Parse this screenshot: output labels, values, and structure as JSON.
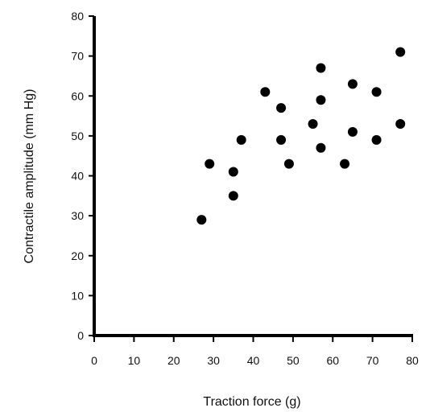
{
  "chart_data": {
    "type": "scatter",
    "title": "",
    "xlabel": "Traction force (g)",
    "ylabel": "Contractile amplitude (mm Hg)",
    "xlim": [
      0,
      80
    ],
    "ylim": [
      0,
      80
    ],
    "x_ticks": [
      0,
      10,
      20,
      30,
      40,
      50,
      60,
      70,
      80
    ],
    "y_ticks": [
      0,
      10,
      20,
      30,
      40,
      50,
      60,
      70,
      80
    ],
    "grid": false,
    "series": [
      {
        "points": [
          {
            "x": 27,
            "y": 29
          },
          {
            "x": 29,
            "y": 43
          },
          {
            "x": 35,
            "y": 41
          },
          {
            "x": 35,
            "y": 35
          },
          {
            "x": 37,
            "y": 49
          },
          {
            "x": 43,
            "y": 61
          },
          {
            "x": 47,
            "y": 57
          },
          {
            "x": 47,
            "y": 49
          },
          {
            "x": 49,
            "y": 43
          },
          {
            "x": 55,
            "y": 53
          },
          {
            "x": 57,
            "y": 67
          },
          {
            "x": 57,
            "y": 59
          },
          {
            "x": 57,
            "y": 47
          },
          {
            "x": 63,
            "y": 43
          },
          {
            "x": 65,
            "y": 63
          },
          {
            "x": 65,
            "y": 51
          },
          {
            "x": 71,
            "y": 61
          },
          {
            "x": 71,
            "y": 49
          },
          {
            "x": 77,
            "y": 71
          },
          {
            "x": 77,
            "y": 53
          }
        ]
      }
    ],
    "colors": {
      "marker": "#000000",
      "axis": "#000000"
    }
  }
}
